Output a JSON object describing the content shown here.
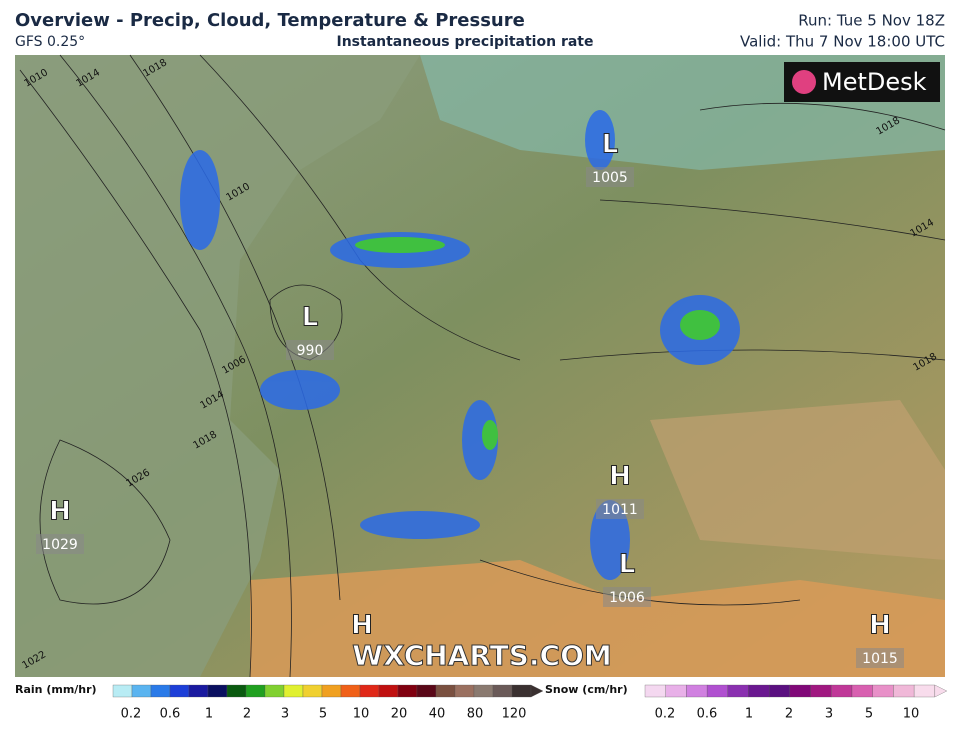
{
  "header": {
    "title": "Overview - Precip, Cloud, Temperature & Pressure",
    "model": "GFS 0.25°",
    "subtitle": "Instantaneous precipitation rate",
    "run": "Run: Tue 5 Nov 18Z",
    "valid": "Valid: Thu 7 Nov 18:00 UTC"
  },
  "logo": "MetDesk",
  "watermark": "WXCHARTS.COM",
  "centers": [
    {
      "symbol": "L",
      "pressure": 1005
    },
    {
      "symbol": "L",
      "pressure": 990
    },
    {
      "symbol": "H",
      "pressure": 1011
    },
    {
      "symbol": "L",
      "pressure": 1006
    },
    {
      "symbol": "H",
      "pressure": 1029
    },
    {
      "symbol": "H"
    },
    {
      "symbol": "H",
      "pressure": 1015
    }
  ],
  "isobar_labels": [
    1010,
    1014,
    1018,
    1010,
    1018,
    1014,
    1018,
    1006,
    1014,
    1018,
    1026,
    1022
  ],
  "rain_legend": {
    "title": "Rain (mm/hr)",
    "ticks": [
      0.2,
      0.6,
      1,
      2,
      3,
      5,
      10,
      20,
      40,
      80,
      120
    ],
    "colors": [
      "#b8ecf4",
      "#5ab4f0",
      "#2a7ae8",
      "#1d3fd8",
      "#1a1aa0",
      "#0a1060",
      "#0a5a10",
      "#20a020",
      "#80d030",
      "#e0f030",
      "#f0d030",
      "#f0a020",
      "#f06018",
      "#e02818",
      "#c01010",
      "#800010",
      "#5a0818",
      "#7a5040",
      "#9a7060",
      "#8a7a70",
      "#6a5a58",
      "#3a3030"
    ]
  },
  "snow_legend": {
    "title": "Snow (cm/hr)",
    "ticks": [
      0.2,
      0.6,
      1,
      2,
      3,
      5,
      10
    ],
    "colors": [
      "#f4d8f0",
      "#e8b0e8",
      "#d080e0",
      "#b050d0",
      "#8a30b0",
      "#6a1890",
      "#5a1080",
      "#800878",
      "#a01880",
      "#c03898",
      "#d860b0",
      "#e890c8",
      "#f0b8d8",
      "#f8dcec"
    ]
  }
}
